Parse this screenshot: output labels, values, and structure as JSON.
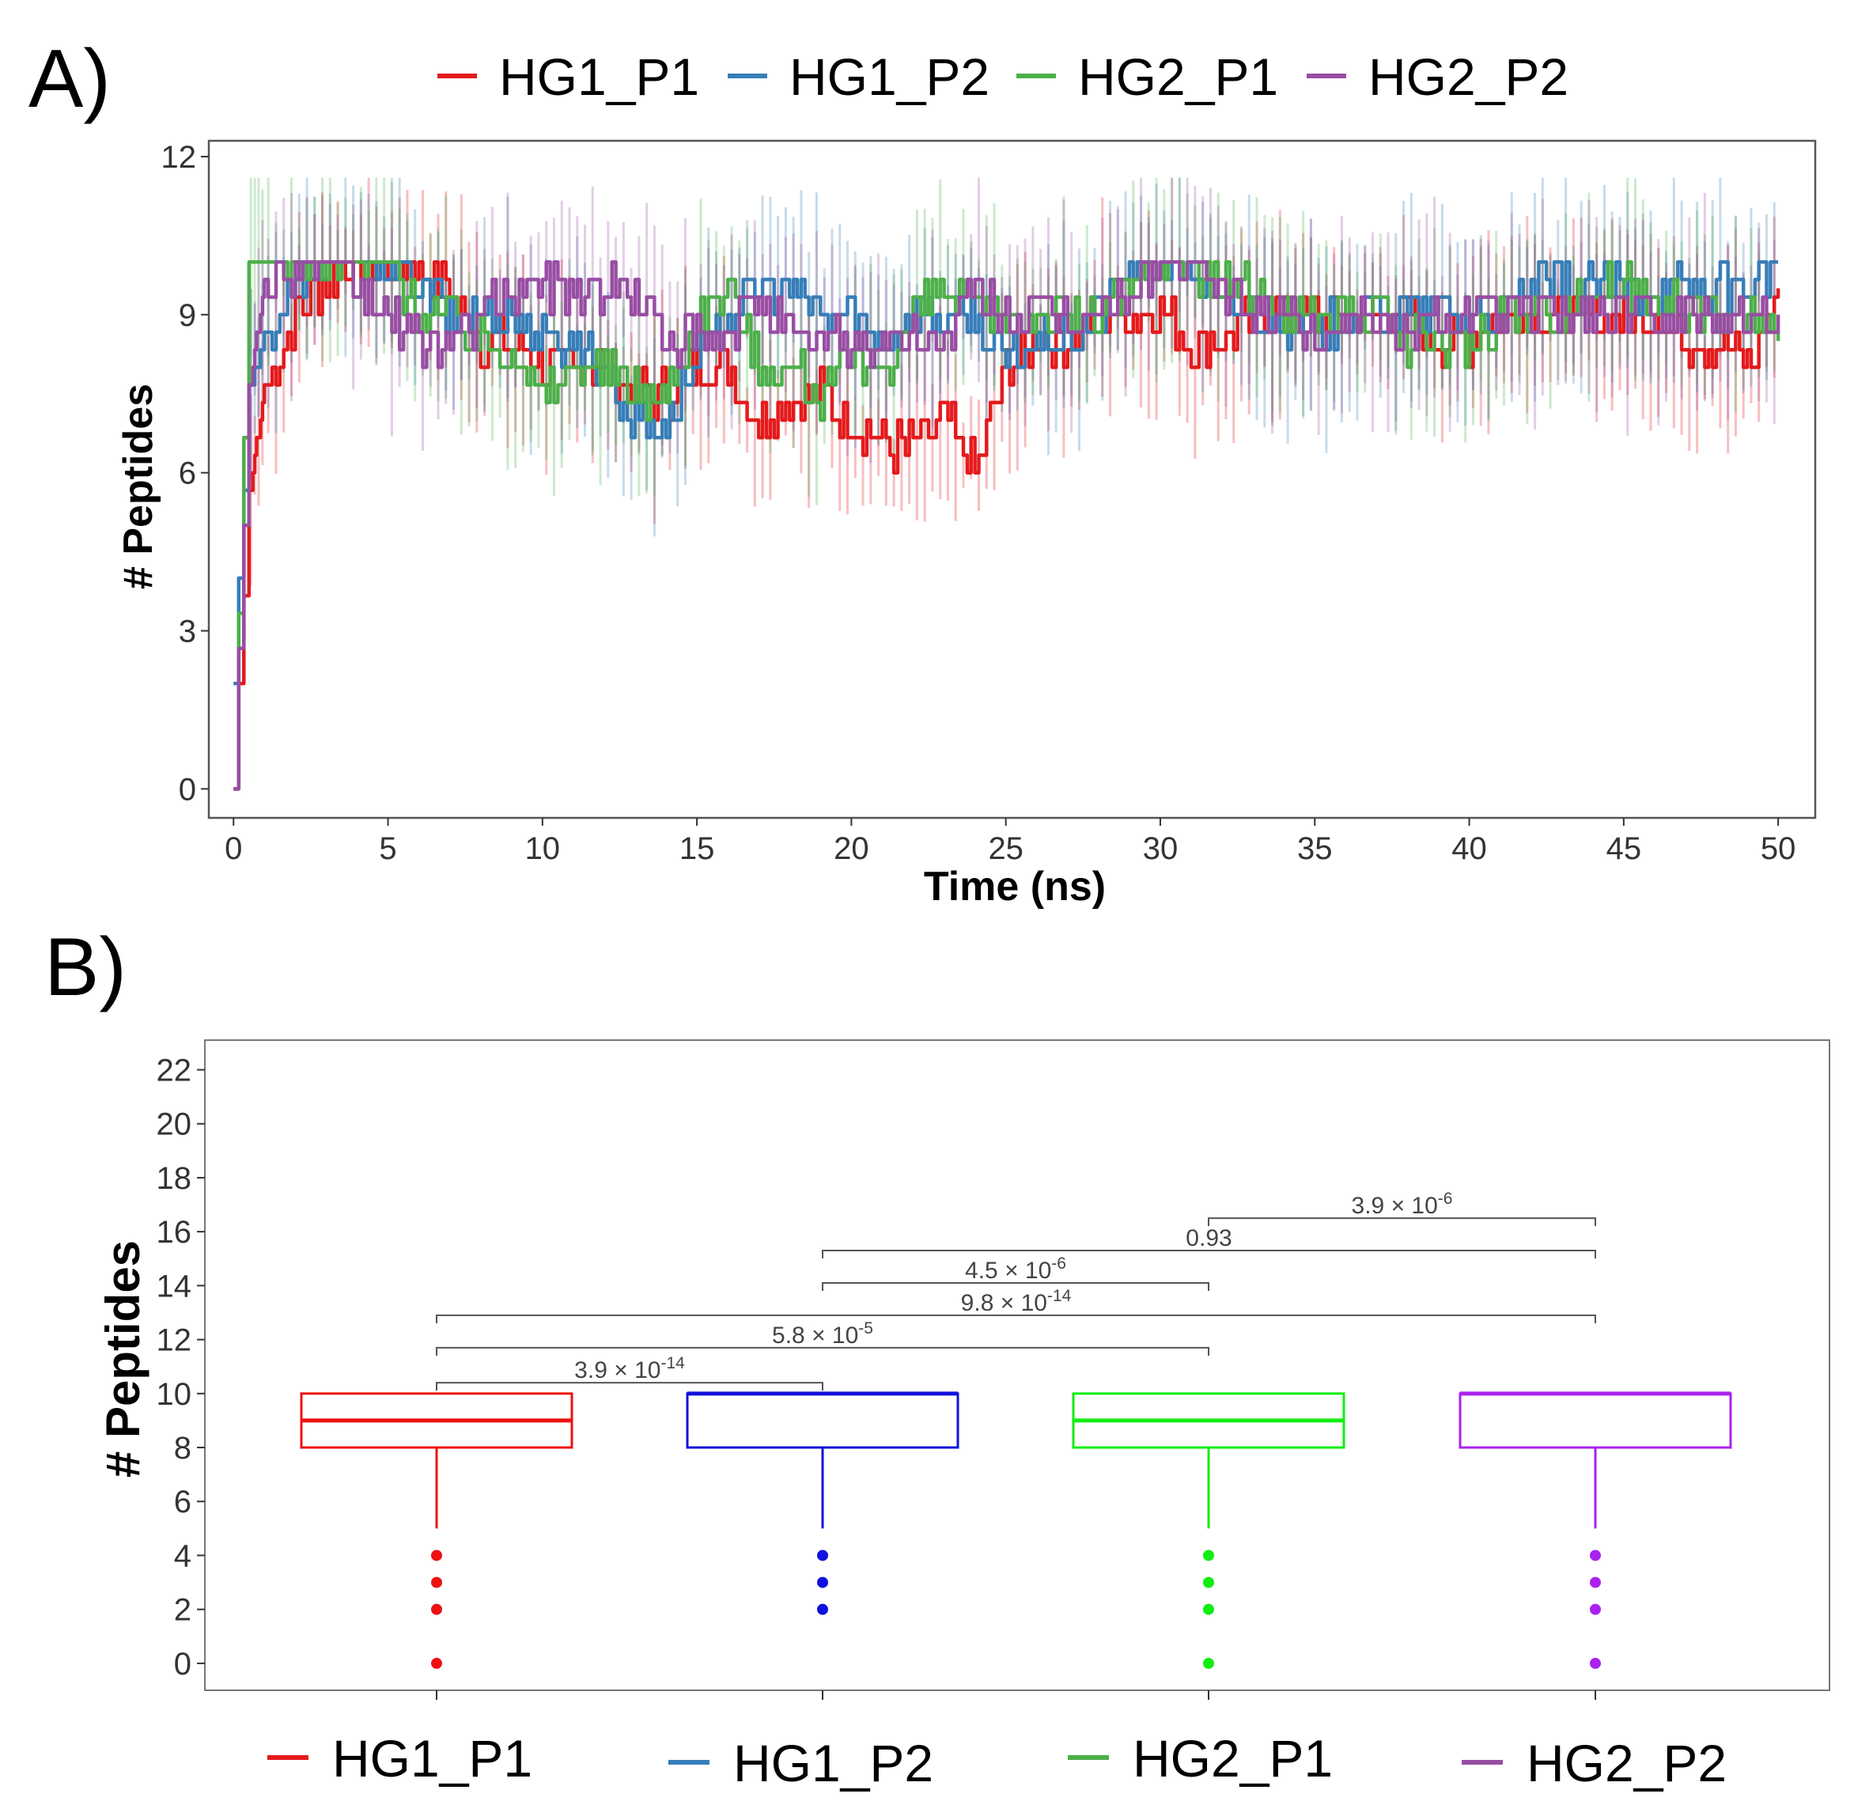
{
  "chart_data": [
    {
      "panel_label": "A)",
      "type": "line",
      "xlabel": "Time (ns)",
      "ylabel": "# Peptides",
      "xlim": [
        -0.8,
        51.2
      ],
      "ylim": [
        -0.55,
        12.3
      ],
      "xticks": [
        0,
        5,
        10,
        15,
        20,
        25,
        30,
        35,
        40,
        45,
        50
      ],
      "yticks": [
        0,
        3,
        6,
        9,
        12
      ],
      "legend_position": "top",
      "error_bars": "semi-transparent per-point error bars (each series)",
      "x": [
        0,
        0.5,
        1,
        2,
        3,
        4,
        5,
        6,
        7,
        8,
        9,
        10,
        11,
        12,
        13,
        14,
        15,
        16,
        17,
        18,
        19,
        20,
        21,
        22,
        23,
        24,
        25,
        26,
        27,
        28,
        29,
        30,
        31,
        32,
        33,
        34,
        35,
        36,
        37,
        38,
        39,
        40,
        41,
        42,
        43,
        44,
        45,
        46,
        47,
        48,
        49,
        50
      ],
      "series": [
        {
          "name": "HG1_P1",
          "color": "#e41a1c",
          "values": [
            0,
            5.5,
            7.5,
            9,
            9.7,
            10,
            10,
            10,
            9.5,
            8.5,
            8.5,
            8,
            8,
            8,
            7.5,
            7.5,
            8,
            8,
            7,
            7.5,
            7.5,
            7,
            6.5,
            6.5,
            7,
            6,
            8,
            8.5,
            8.5,
            9,
            9,
            9,
            8.5,
            8.5,
            9,
            9,
            9,
            9,
            9,
            9,
            8.5,
            8.5,
            9,
            9,
            9,
            9,
            9,
            9,
            8.5,
            8.5,
            8,
            9.5
          ]
        },
        {
          "name": "HG1_P2",
          "color": "#377eb8",
          "values": [
            2,
            7.5,
            8.5,
            9.5,
            10,
            10,
            10,
            9.5,
            9,
            9,
            9,
            8.5,
            8.5,
            8,
            7,
            7,
            8,
            9,
            9.5,
            9.5,
            9,
            9,
            8.5,
            9,
            9,
            9,
            8,
            8.5,
            8.5,
            9,
            10,
            10,
            10,
            9,
            9,
            9,
            8.5,
            9,
            9,
            9,
            9,
            9,
            9,
            9.5,
            9.5,
            9.5,
            9.5,
            9.5,
            9.5,
            9.5,
            9.5,
            10
          ]
        },
        {
          "name": "HG2_P1",
          "color": "#4daf4a",
          "values": [
            0,
            10,
            10,
            10,
            10,
            10,
            10,
            9,
            9,
            8.5,
            8.5,
            7.5,
            8,
            8,
            7.5,
            7.5,
            9,
            9.5,
            8,
            8,
            7.5,
            8,
            8,
            9,
            9.5,
            9,
            9,
            9,
            9,
            9,
            9.5,
            10,
            10,
            9.5,
            9.5,
            9,
            9,
            9,
            9,
            8.5,
            8.5,
            8.5,
            9,
            9,
            9,
            9.5,
            9.5,
            9.5,
            9,
            9,
            9,
            8.5
          ]
        },
        {
          "name": "HG2_P2",
          "color": "#984ea3",
          "values": [
            0,
            7.5,
            9.5,
            10,
            10,
            9.5,
            9,
            8.5,
            8.5,
            9,
            9.5,
            9.5,
            9.5,
            9.5,
            9.5,
            8.5,
            8.5,
            8.5,
            9.5,
            8.5,
            8.5,
            8.5,
            8.5,
            8.5,
            8.5,
            9.5,
            9,
            9,
            9,
            9,
            9.5,
            10,
            10,
            9.5,
            9,
            9,
            8.5,
            9,
            9,
            8.5,
            9,
            9,
            9,
            9,
            9,
            9,
            9,
            9,
            9,
            9,
            9,
            9
          ]
        }
      ]
    },
    {
      "panel_label": "B)",
      "type": "box",
      "ylabel": "# Peptides",
      "ylim": [
        -1,
        23.1
      ],
      "yticks": [
        0,
        2,
        4,
        6,
        8,
        10,
        12,
        14,
        16,
        18,
        20,
        22
      ],
      "legend_position": "bottom",
      "categories": [
        "HG1_P1",
        "HG1_P2",
        "HG2_P1",
        "HG2_P2"
      ],
      "boxes": [
        {
          "name": "HG1_P1",
          "color": "#ee1111",
          "legend_color": "#e41a1c",
          "whisker_low": 5,
          "q1": 8,
          "median": 9,
          "q3": 10,
          "whisker_high": 10,
          "outliers": [
            4,
            3,
            2,
            0
          ]
        },
        {
          "name": "HG1_P2",
          "color": "#1111dd",
          "legend_color": "#377eb8",
          "whisker_low": 5,
          "q1": 8,
          "median": 10,
          "q3": 10,
          "whisker_high": 10,
          "outliers": [
            4,
            3,
            2
          ]
        },
        {
          "name": "HG2_P1",
          "color": "#11ee11",
          "legend_color": "#4daf4a",
          "whisker_low": 5,
          "q1": 8,
          "median": 9,
          "q3": 10,
          "whisker_high": 10,
          "outliers": [
            4,
            3,
            2,
            0
          ]
        },
        {
          "name": "HG2_P2",
          "color": "#aa22ee",
          "legend_color": "#984ea3",
          "whisker_low": 5,
          "q1": 8,
          "median": 10,
          "q3": 10,
          "whisker_high": 10,
          "outliers": [
            4,
            3,
            2,
            0
          ]
        }
      ],
      "comparisons": [
        {
          "groups": [
            0,
            1
          ],
          "level": 10.4,
          "base": "3.9",
          "exp": "-14"
        },
        {
          "groups": [
            0,
            2
          ],
          "level": 11.7,
          "base": "5.8",
          "exp": "-5"
        },
        {
          "groups": [
            0,
            3
          ],
          "level": 12.9,
          "base": "9.8",
          "exp": "-14"
        },
        {
          "groups": [
            1,
            2
          ],
          "level": 14.1,
          "base": "4.5",
          "exp": "-6"
        },
        {
          "groups": [
            1,
            3
          ],
          "level": 15.3,
          "label": "0.93"
        },
        {
          "groups": [
            2,
            3
          ],
          "level": 16.5,
          "base": "3.9",
          "exp": "-6"
        }
      ]
    }
  ]
}
